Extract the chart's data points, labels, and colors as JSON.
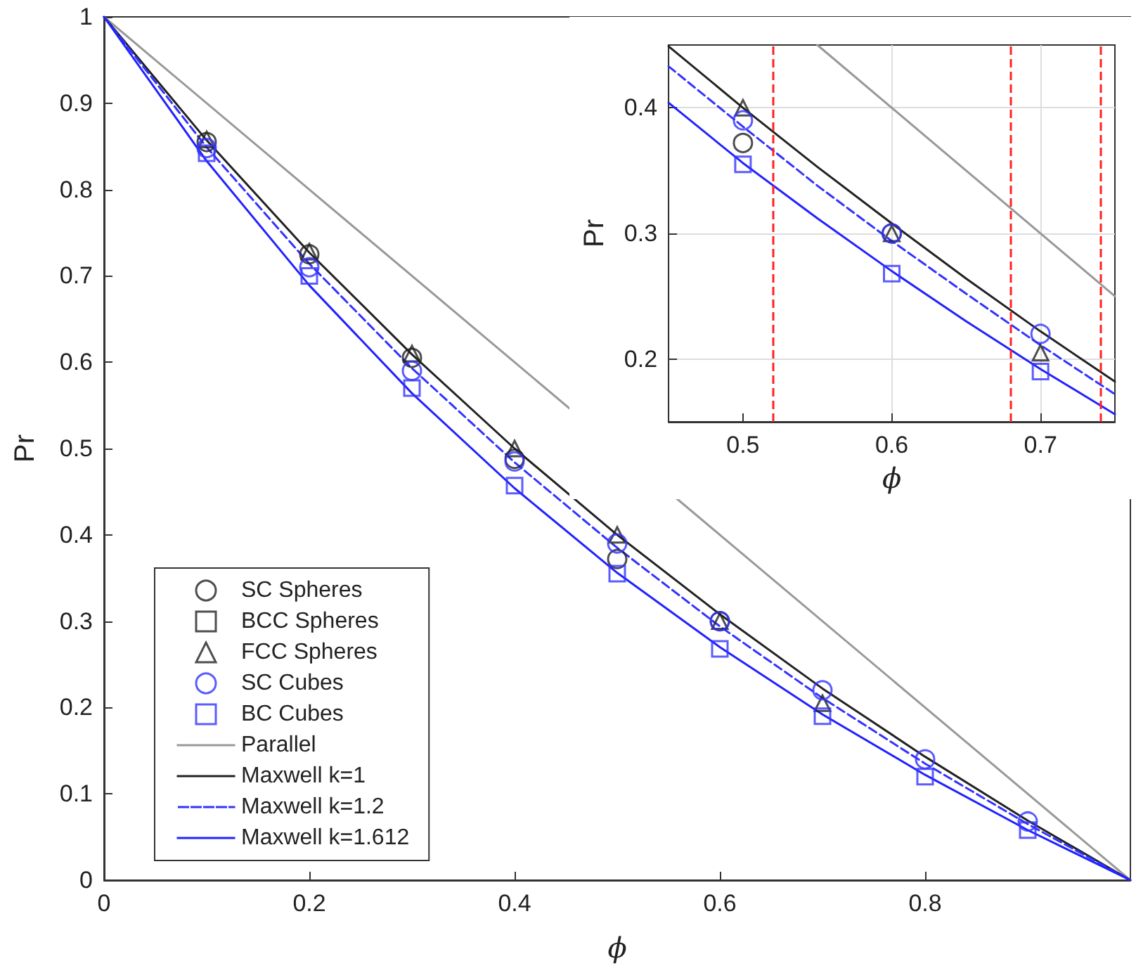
{
  "chart_data": [
    {
      "type": "scatter",
      "xlabel": "ϕ",
      "ylabel": "Pr",
      "xlim": [
        0,
        1
      ],
      "ylim": [
        0,
        1
      ],
      "xticks": [
        0,
        0.2,
        0.4,
        0.6,
        0.8
      ],
      "yticks": [
        0,
        0.1,
        0.2,
        0.3,
        0.4,
        0.5,
        0.6,
        0.7,
        0.8,
        0.9,
        1
      ],
      "grid": false,
      "legend": "bottom left",
      "series": [
        {
          "name": "SC Spheres",
          "marker": "circle",
          "color": "#222222",
          "x": [
            0.1,
            0.2,
            0.3,
            0.4,
            0.5,
            0.6
          ],
          "values": [
            0.855,
            0.725,
            0.605,
            0.488,
            0.372,
            0.3
          ]
        },
        {
          "name": "BCC Spheres",
          "marker": "square",
          "color": "#222222"
        },
        {
          "name": "FCC Spheres",
          "marker": "triangle",
          "color": "#222222",
          "x": [
            0.1,
            0.2,
            0.3,
            0.4,
            0.5,
            0.6,
            0.7
          ],
          "values": [
            0.858,
            0.728,
            0.61,
            0.5,
            0.4,
            0.3,
            0.205
          ]
        },
        {
          "name": "SC Cubes",
          "marker": "circle",
          "color": "#3333ff",
          "x": [
            0.1,
            0.2,
            0.3,
            0.4,
            0.5,
            0.6,
            0.7,
            0.8,
            0.9
          ],
          "values": [
            0.848,
            0.71,
            0.59,
            0.485,
            0.39,
            0.3,
            0.22,
            0.14,
            0.068
          ]
        },
        {
          "name": "BC Cubes",
          "marker": "square",
          "color": "#3333ff",
          "x": [
            0.1,
            0.2,
            0.3,
            0.4,
            0.5,
            0.6,
            0.7,
            0.8,
            0.9
          ],
          "values": [
            0.842,
            0.7,
            0.57,
            0.457,
            0.355,
            0.268,
            0.19,
            0.12,
            0.058
          ]
        },
        {
          "name": "Parallel",
          "type": "line",
          "marker": "none",
          "line_style": "solid",
          "color": "#999999",
          "x": [
            0,
            1
          ],
          "values": [
            1,
            0
          ]
        },
        {
          "name": "Maxwell k=1",
          "type": "line",
          "marker": "none",
          "line_style": "solid",
          "color": "#222222",
          "x": [
            0,
            0.1,
            0.2,
            0.3,
            0.4,
            0.5,
            0.6,
            0.7,
            0.8,
            0.9,
            1
          ],
          "values": [
            1,
            0.857,
            0.727,
            0.609,
            0.5,
            0.4,
            0.308,
            0.222,
            0.143,
            0.069,
            0
          ]
        },
        {
          "name": "Maxwell k=1.2",
          "type": "line",
          "marker": "none",
          "line_style": "dashed",
          "color": "#3333ff",
          "x": [
            0,
            0.1,
            0.2,
            0.3,
            0.4,
            0.5,
            0.6,
            0.7,
            0.8,
            0.9,
            1
          ],
          "values": [
            1,
            0.849,
            0.714,
            0.593,
            0.484,
            0.385,
            0.294,
            0.211,
            0.135,
            0.065,
            0
          ]
        },
        {
          "name": "Maxwell k=1.612",
          "type": "line",
          "marker": "none",
          "line_style": "solid",
          "color": "#2222ff",
          "x": [
            0,
            0.1,
            0.2,
            0.3,
            0.4,
            0.5,
            0.6,
            0.7,
            0.8,
            0.9,
            1
          ],
          "values": [
            1,
            0.833,
            0.689,
            0.564,
            0.454,
            0.356,
            0.27,
            0.192,
            0.122,
            0.058,
            0
          ]
        }
      ]
    },
    {
      "type": "scatter",
      "xlabel": "ϕ",
      "ylabel": "Pr",
      "xlim": [
        0.45,
        0.75
      ],
      "ylim": [
        0.15,
        0.45
      ],
      "xticks": [
        0.5,
        0.6,
        0.7
      ],
      "yticks": [
        0.2,
        0.3,
        0.4
      ],
      "grid": true,
      "legend": false,
      "ref_lines": [
        {
          "axis": "x",
          "value": 0.52,
          "color": "#ff2222",
          "line_style": "dashed"
        },
        {
          "axis": "x",
          "value": 0.68,
          "color": "#ff2222",
          "line_style": "dashed"
        },
        {
          "axis": "x",
          "value": 0.74,
          "color": "#ff2222",
          "line_style": "dashed"
        }
      ],
      "series": [
        {
          "type": "line",
          "marker": "none",
          "line_style": "solid",
          "color": "#999999",
          "x": [
            0.55,
            0.75
          ],
          "values": [
            0.45,
            0.25
          ]
        },
        {
          "type": "line",
          "marker": "none",
          "line_style": "solid",
          "color": "#222222",
          "x": [
            0.45,
            0.5,
            0.55,
            0.6,
            0.65,
            0.7,
            0.75
          ],
          "values": [
            0.449,
            0.4,
            0.353,
            0.308,
            0.264,
            0.222,
            0.182
          ]
        },
        {
          "type": "line",
          "marker": "none",
          "line_style": "dashed",
          "color": "#3333ff",
          "x": [
            0.45,
            0.5,
            0.55,
            0.6,
            0.65,
            0.7,
            0.75
          ],
          "values": [
            0.433,
            0.385,
            0.338,
            0.294,
            0.252,
            0.211,
            0.172
          ]
        },
        {
          "type": "line",
          "marker": "none",
          "line_style": "solid",
          "color": "#2222ff",
          "x": [
            0.45,
            0.5,
            0.55,
            0.6,
            0.65,
            0.7,
            0.75
          ],
          "values": [
            0.404,
            0.356,
            0.312,
            0.27,
            0.23,
            0.192,
            0.156
          ]
        },
        {
          "marker": "circle",
          "color": "#222222",
          "x": [
            0.5,
            0.6
          ],
          "values": [
            0.372,
            0.3
          ]
        },
        {
          "marker": "triangle",
          "color": "#222222",
          "x": [
            0.5,
            0.6,
            0.7
          ],
          "values": [
            0.4,
            0.3,
            0.205
          ]
        },
        {
          "marker": "circle",
          "color": "#3333ff",
          "x": [
            0.5,
            0.6,
            0.7
          ],
          "values": [
            0.39,
            0.3,
            0.22
          ]
        },
        {
          "marker": "square",
          "color": "#3333ff",
          "x": [
            0.5,
            0.6,
            0.7
          ],
          "values": [
            0.355,
            0.268,
            0.19
          ]
        }
      ]
    }
  ]
}
